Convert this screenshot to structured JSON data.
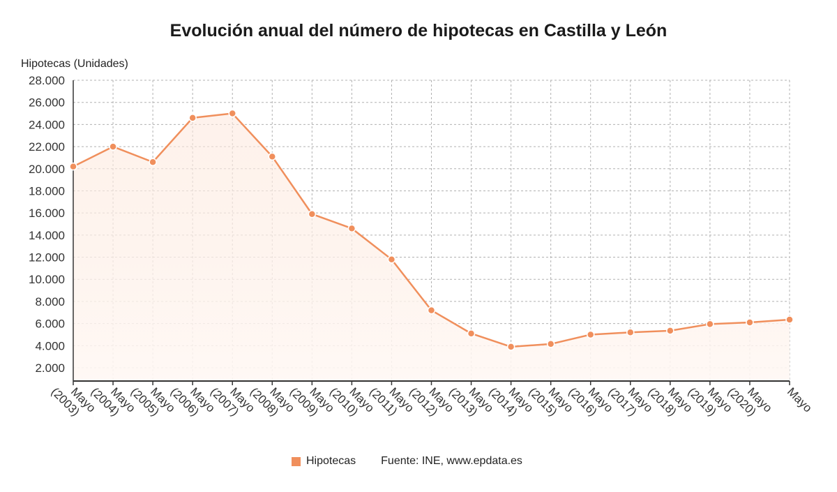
{
  "title": "Evolución anual del número de hipotecas en Castilla y León",
  "legend": {
    "series_label": "Hipotecas",
    "source": "Fuente: INE, www.epdata.es"
  },
  "colors": {
    "line": "#f08f5c",
    "fill_top": "#fde8dc",
    "fill_bottom": "#fff8f4",
    "grid": "#b0b0b0",
    "axis": "#333333"
  },
  "chart_data": {
    "type": "line",
    "title": "Evolución anual del número de hipotecas en Castilla y León",
    "ylabel": "Hipotecas (Unidades)",
    "xlabel": "",
    "ylim": [
      800,
      28000
    ],
    "yticks": [
      2000,
      4000,
      6000,
      8000,
      10000,
      12000,
      14000,
      16000,
      18000,
      20000,
      22000,
      24000,
      26000,
      28000
    ],
    "ytick_labels": [
      "2.000",
      "4.000",
      "6.000",
      "8.000",
      "10.000",
      "12.000",
      "14.000",
      "16.000",
      "18.000",
      "20.000",
      "22.000",
      "24.000",
      "26.000",
      "28.000"
    ],
    "categories": [
      "Mayo (2003)",
      "Mayo (2004)",
      "Mayo (2005)",
      "Mayo (2006)",
      "Mayo (2007)",
      "Mayo (2008)",
      "Mayo (2009)",
      "Mayo (2010)",
      "Mayo (2011)",
      "Mayo (2012)",
      "Mayo (2013)",
      "Mayo (2014)",
      "Mayo (2015)",
      "Mayo (2016)",
      "Mayo (2017)",
      "Mayo (2018)",
      "Mayo (2019)",
      "Mayo (2020)",
      "Mayo"
    ],
    "series": [
      {
        "name": "Hipotecas",
        "values": [
          20200,
          22000,
          20600,
          24600,
          25000,
          21100,
          15900,
          14600,
          11800,
          7200,
          5100,
          3900,
          4150,
          5000,
          5200,
          5350,
          5950,
          6100,
          6350
        ]
      }
    ],
    "grid": true,
    "legend_position": "bottom"
  }
}
